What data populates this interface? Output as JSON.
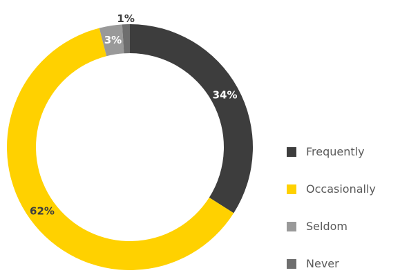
{
  "chart_data": {
    "type": "pie",
    "donut": true,
    "categories": [
      "Frequently",
      "Occasionally",
      "Seldom",
      "Never"
    ],
    "values": [
      34,
      62,
      3,
      1
    ],
    "data_labels": [
      "34%",
      "62%",
      "3%",
      "1%"
    ],
    "colors": [
      "#3d3d3d",
      "#ffd100",
      "#999999",
      "#6e6e6e"
    ],
    "title": "",
    "legend": "right"
  }
}
